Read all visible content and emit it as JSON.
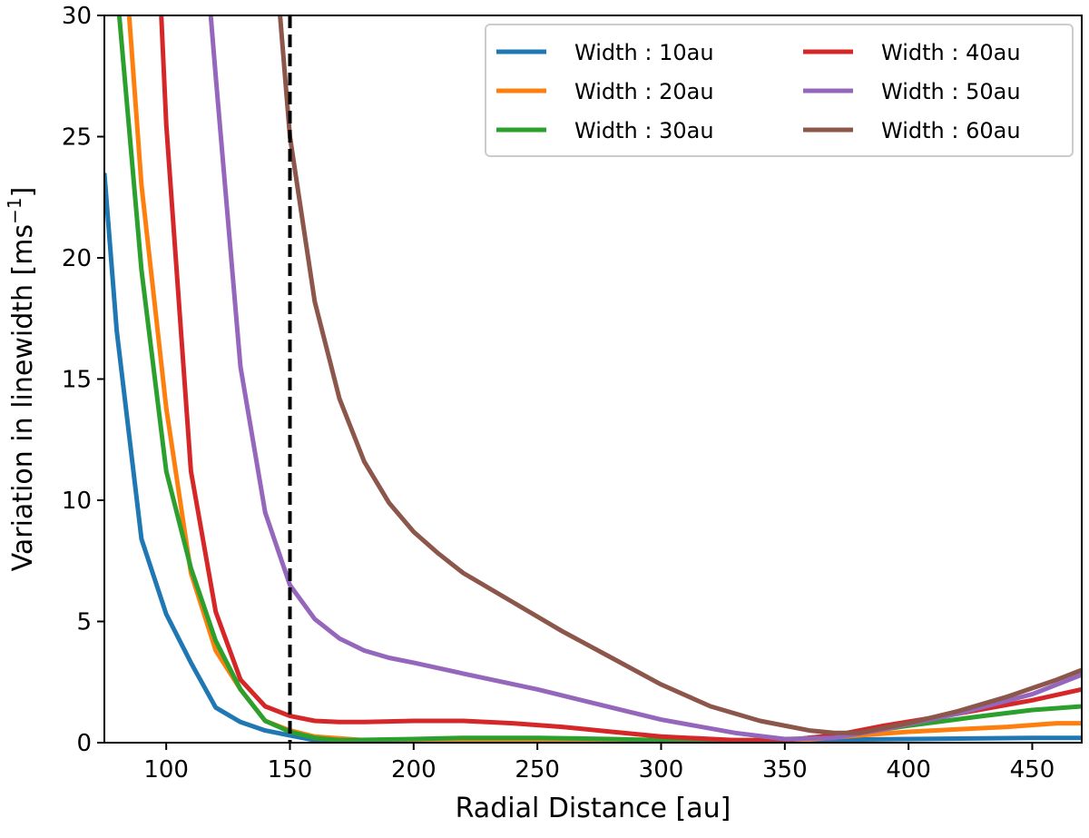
{
  "chart_data": {
    "type": "line",
    "title": "",
    "xlabel": "Radial Distance [au]",
    "ylabel": "Variation in linewidth [ms",
    "ylabel_superscript": "−1",
    "ylabel_suffix": "]",
    "xlim": [
      75,
      470
    ],
    "ylim": [
      0,
      30
    ],
    "xticks": [
      100,
      150,
      200,
      250,
      300,
      350,
      400,
      450
    ],
    "yticks": [
      0,
      5,
      10,
      15,
      20,
      25,
      30
    ],
    "grid": false,
    "legend_position": "top-right",
    "vline": {
      "x": 150,
      "style": "dashed",
      "color": "#000000"
    },
    "series": [
      {
        "name": "Width : 10au",
        "color": "#1f77b4",
        "x": [
          75,
          80,
          90,
          100,
          110,
          120,
          130,
          140,
          150,
          160,
          180,
          200,
          250,
          300,
          350,
          400,
          450,
          470
        ],
        "y": [
          23.5,
          17.0,
          8.4,
          5.3,
          3.3,
          1.45,
          0.85,
          0.5,
          0.3,
          0.1,
          0.05,
          0.05,
          0.05,
          0.05,
          0.1,
          0.15,
          0.2,
          0.2
        ]
      },
      {
        "name": "Width : 20au",
        "color": "#ff7f0e",
        "x": [
          85,
          90,
          100,
          110,
          120,
          130,
          140,
          150,
          160,
          180,
          200,
          250,
          300,
          350,
          380,
          400,
          420,
          440,
          460,
          470
        ],
        "y": [
          30,
          23.0,
          13.8,
          7.0,
          3.8,
          2.2,
          0.9,
          0.5,
          0.25,
          0.1,
          0.1,
          0.1,
          0.05,
          0.05,
          0.3,
          0.45,
          0.55,
          0.65,
          0.8,
          0.8
        ]
      },
      {
        "name": "Width : 30au",
        "color": "#2ca02c",
        "x": [
          81,
          90,
          100,
          110,
          120,
          130,
          140,
          150,
          160,
          170,
          200,
          220,
          250,
          280,
          300,
          350,
          380,
          400,
          430,
          450,
          470
        ],
        "y": [
          30,
          19.5,
          11.2,
          7.2,
          4.2,
          2.2,
          0.9,
          0.45,
          0.2,
          0.1,
          0.15,
          0.2,
          0.2,
          0.15,
          0.1,
          0.1,
          0.4,
          0.7,
          1.1,
          1.35,
          1.5
        ]
      },
      {
        "name": "Width : 40au",
        "color": "#d62728",
        "x": [
          98,
          100,
          110,
          120,
          130,
          140,
          150,
          160,
          170,
          180,
          200,
          220,
          240,
          260,
          280,
          300,
          330,
          350,
          370,
          390,
          420,
          450,
          470
        ],
        "y": [
          30,
          25.5,
          11.2,
          5.4,
          2.6,
          1.5,
          1.1,
          0.9,
          0.85,
          0.85,
          0.9,
          0.9,
          0.8,
          0.65,
          0.45,
          0.25,
          0.1,
          0.1,
          0.3,
          0.7,
          1.2,
          1.75,
          2.2
        ]
      },
      {
        "name": "Width : 50au",
        "color": "#9467bd",
        "x": [
          118,
          120,
          130,
          140,
          150,
          160,
          170,
          180,
          190,
          200,
          220,
          250,
          280,
          300,
          330,
          350,
          370,
          390,
          420,
          450,
          470
        ],
        "y": [
          30,
          27.5,
          15.5,
          9.5,
          6.5,
          5.1,
          4.3,
          3.8,
          3.5,
          3.3,
          2.85,
          2.2,
          1.45,
          0.95,
          0.4,
          0.15,
          0.2,
          0.55,
          1.2,
          2.0,
          2.8
        ]
      },
      {
        "name": "Width : 60au",
        "color": "#8c564b",
        "x": [
          146,
          150,
          160,
          170,
          180,
          190,
          200,
          210,
          220,
          240,
          260,
          280,
          300,
          320,
          340,
          360,
          370,
          380,
          400,
          420,
          440,
          460,
          470
        ],
        "y": [
          30,
          25.0,
          18.2,
          14.2,
          11.6,
          9.9,
          8.7,
          7.8,
          7.0,
          5.8,
          4.6,
          3.5,
          2.4,
          1.5,
          0.9,
          0.5,
          0.4,
          0.4,
          0.8,
          1.3,
          1.9,
          2.6,
          3.0
        ]
      }
    ]
  }
}
